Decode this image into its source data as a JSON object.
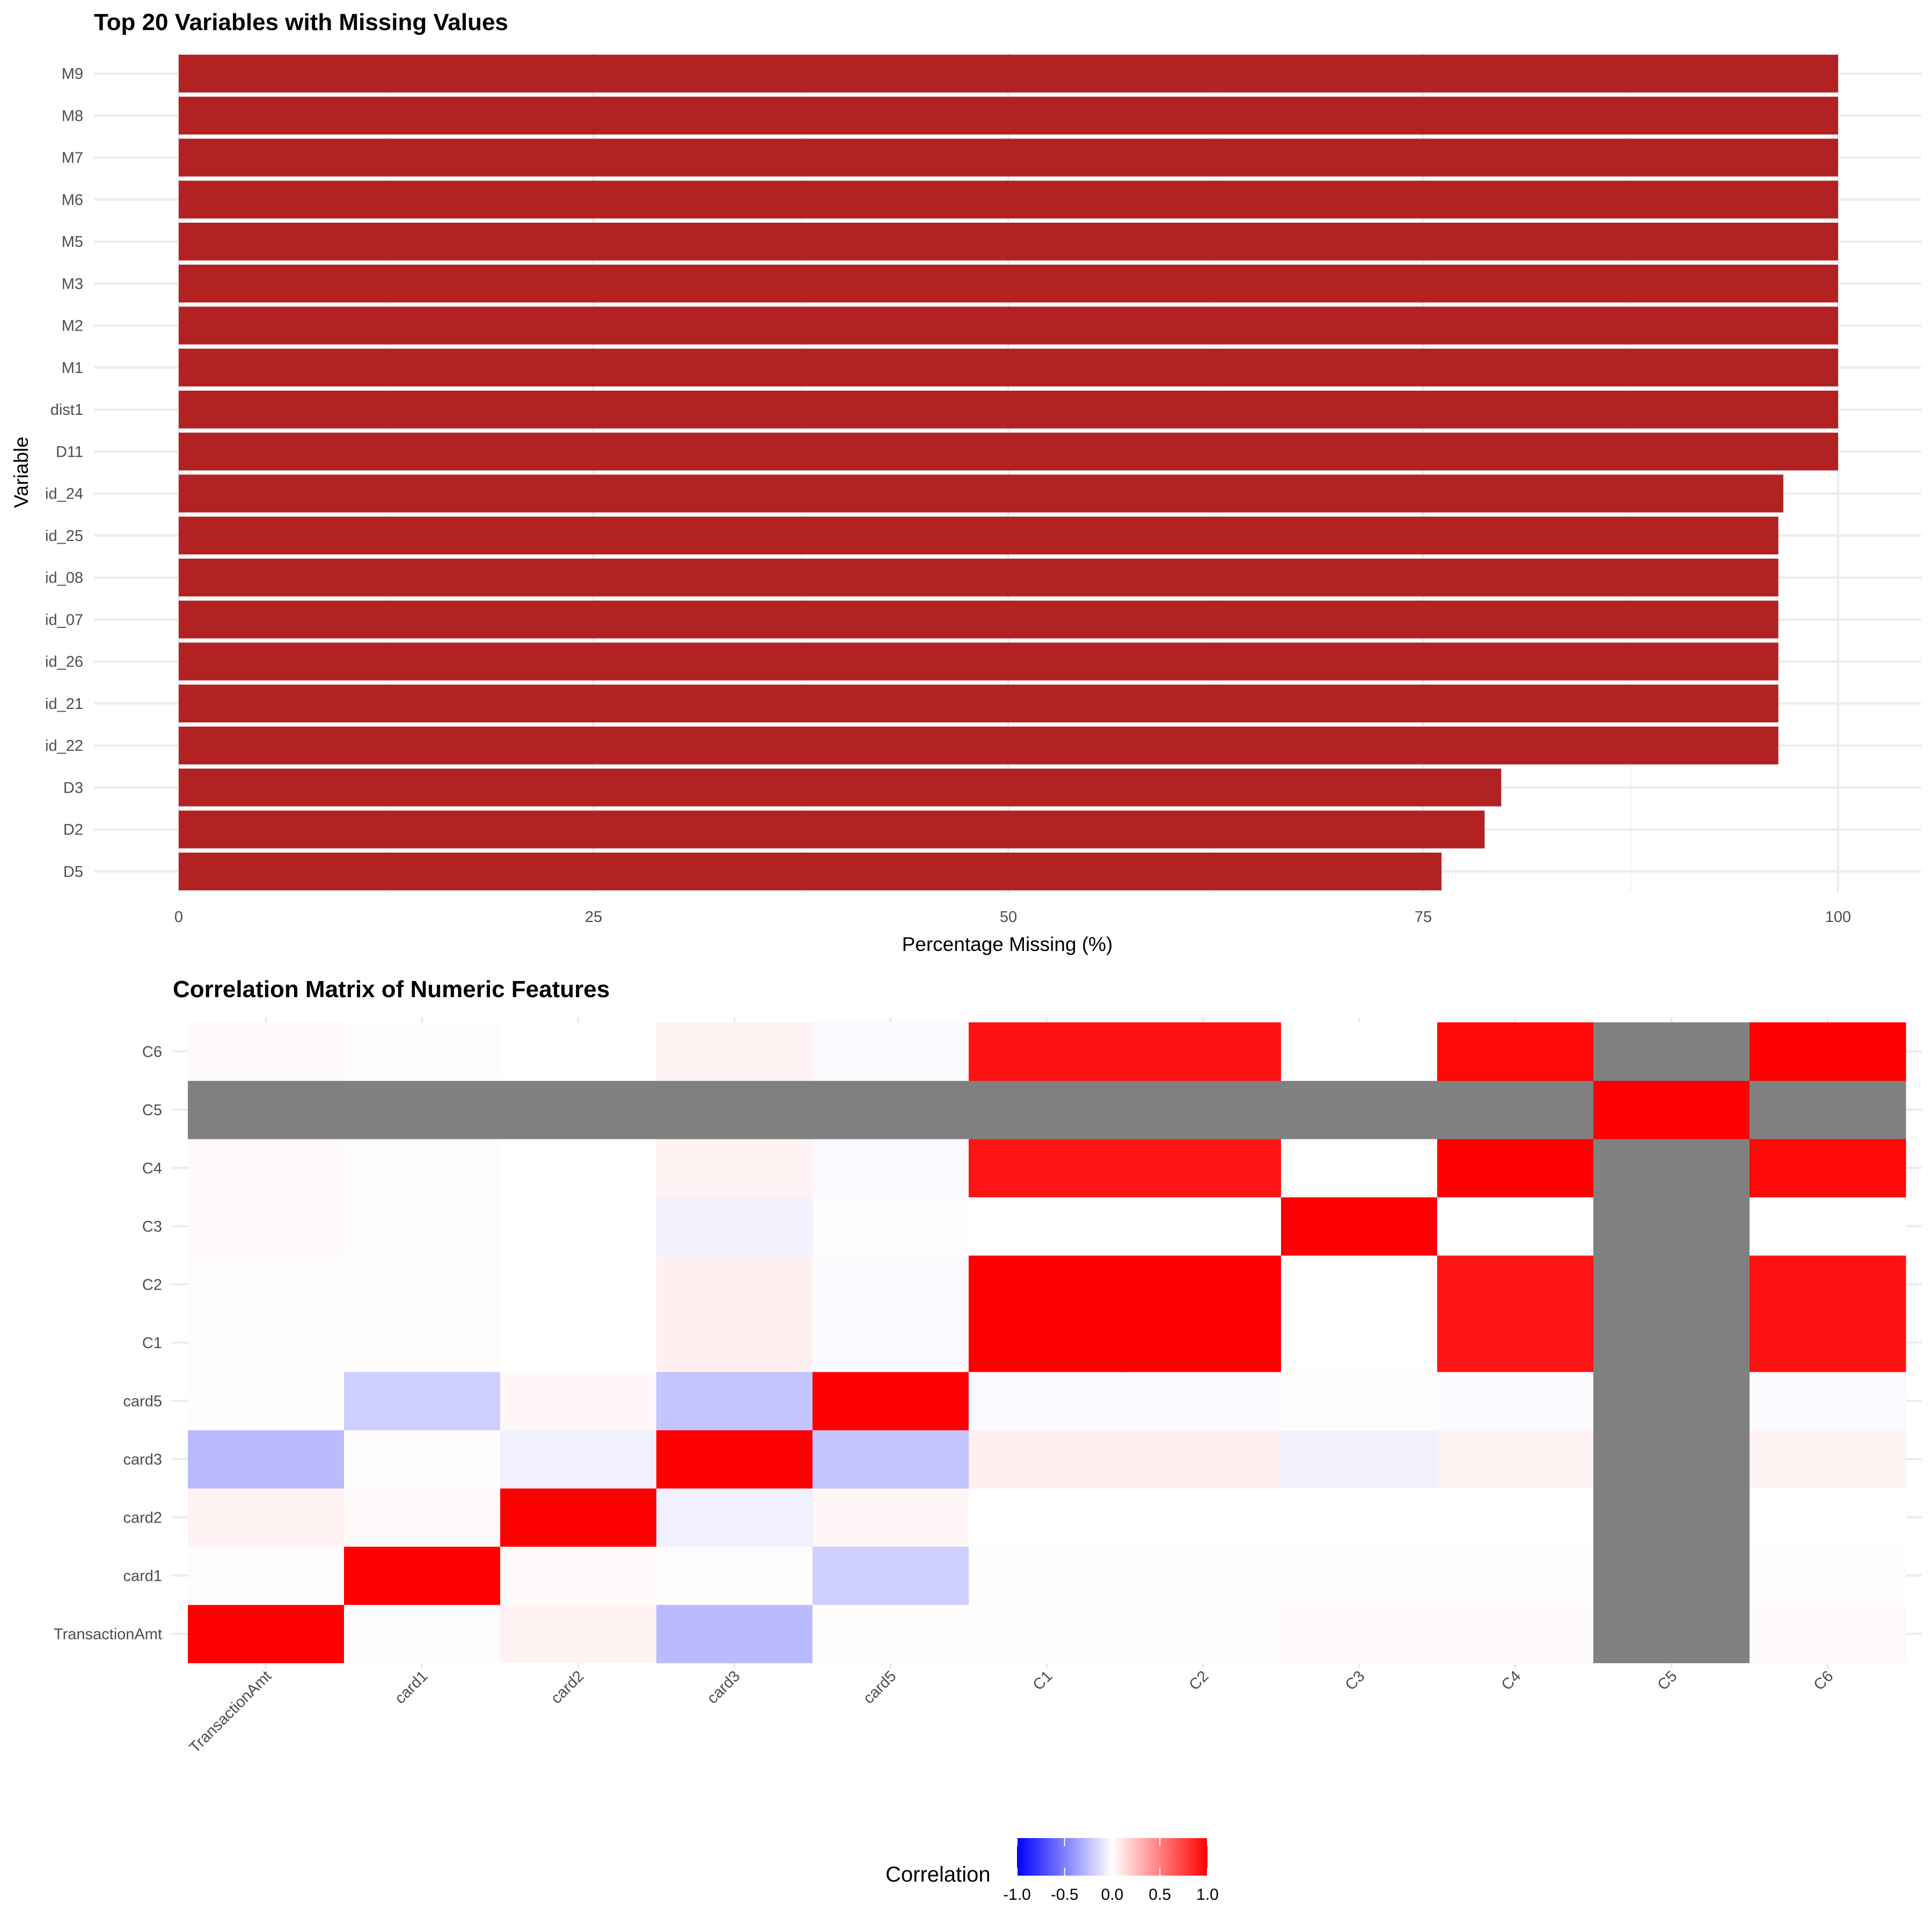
{
  "chart_data": [
    {
      "type": "bar",
      "orientation": "horizontal",
      "title": "Top 20 Variables with Missing Values",
      "xlabel": "Percentage Missing (%)",
      "ylabel": "Variable",
      "xlim": [
        0,
        100
      ],
      "xticks": [
        0,
        25,
        50,
        75,
        100
      ],
      "xtick_labels": [
        "0",
        "25",
        "50",
        "75",
        "100"
      ],
      "bar_color": "#b22222",
      "grid": true,
      "categories": [
        "M9",
        "M8",
        "M7",
        "M6",
        "M5",
        "M3",
        "M2",
        "M1",
        "dist1",
        "D11",
        "id_24",
        "id_25",
        "id_08",
        "id_07",
        "id_26",
        "id_21",
        "id_22",
        "D3",
        "D2",
        "D5"
      ],
      "values": [
        100,
        100,
        100,
        100,
        100,
        100,
        100,
        100,
        100,
        100,
        96.7,
        96.4,
        96.4,
        96.4,
        96.4,
        96.4,
        96.4,
        79.7,
        78.7,
        76.1
      ]
    },
    {
      "type": "heatmap",
      "title": "Correlation Matrix of Numeric Features",
      "x_categories": [
        "TransactionAmt",
        "card1",
        "card2",
        "card3",
        "card5",
        "C1",
        "C2",
        "C3",
        "C4",
        "C5",
        "C6"
      ],
      "y_categories": [
        "TransactionAmt",
        "card1",
        "card2",
        "card3",
        "card5",
        "C1",
        "C2",
        "C3",
        "C4",
        "C5",
        "C6"
      ],
      "missing_color": "#808080",
      "colorscale": {
        "low": "#0000ff",
        "mid": "#ffffff",
        "high": "#ff0000"
      },
      "values": [
        [
          1,
          -0.01,
          0.05,
          -0.27,
          0.01,
          0.01,
          0.01,
          0.02,
          0.02,
          null,
          0.02
        ],
        [
          -0.01,
          1,
          0.02,
          0.01,
          -0.19,
          0.01,
          0.01,
          0.01,
          0.01,
          null,
          0.01
        ],
        [
          0.05,
          0.02,
          1,
          -0.06,
          0.03,
          0.0,
          0.0,
          0.0,
          0.0,
          null,
          0.0
        ],
        [
          -0.27,
          0.01,
          -0.06,
          1,
          -0.23,
          0.06,
          0.06,
          -0.05,
          0.05,
          null,
          0.05
        ],
        [
          0.01,
          -0.19,
          0.03,
          -0.23,
          1,
          -0.02,
          -0.02,
          0.01,
          -0.02,
          null,
          -0.02
        ],
        [
          0.01,
          0.01,
          0.0,
          0.06,
          -0.02,
          1,
          1,
          0.0,
          0.92,
          null,
          0.93
        ],
        [
          0.01,
          0.01,
          0.0,
          0.06,
          -0.02,
          1,
          1,
          0.0,
          0.92,
          null,
          0.93
        ],
        [
          0.02,
          0.01,
          0.0,
          -0.05,
          0.01,
          0.0,
          0.0,
          1,
          0.0,
          null,
          0.0
        ],
        [
          0.02,
          0.01,
          0.0,
          0.05,
          -0.02,
          0.92,
          0.92,
          0.0,
          1,
          null,
          0.97
        ],
        [
          null,
          null,
          null,
          null,
          null,
          null,
          null,
          null,
          null,
          1,
          null
        ],
        [
          0.02,
          0.01,
          0.0,
          0.05,
          -0.02,
          0.93,
          0.93,
          0.0,
          0.97,
          null,
          1
        ]
      ],
      "legend_title": "Correlation",
      "legend_placement": "bottom",
      "legend_ticks": [
        "-1.0",
        "-0.5",
        "0.0",
        "0.5",
        "1.0"
      ],
      "legend_tick_values": [
        -1,
        -0.5,
        0,
        0.5,
        1
      ]
    }
  ]
}
